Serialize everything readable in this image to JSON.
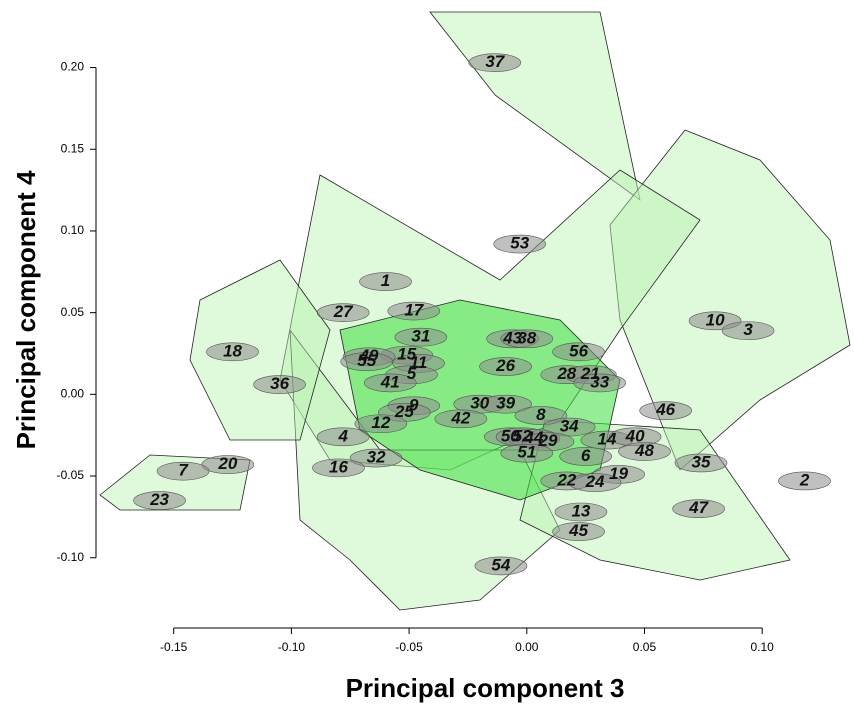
{
  "chart_data": {
    "type": "scatter",
    "xlabel": "Principal component 3",
    "ylabel": "Principal component 4",
    "xlim": [
      -0.183,
      0.139
    ],
    "ylim": [
      -0.143,
      0.234
    ],
    "xticks": [
      -0.15,
      {
        "value": -0.1,
        "label": "-0.10"
      },
      -0.05,
      {
        "value": 0,
        "label": "0.00"
      },
      0.05,
      {
        "value": 0.1,
        "label": "0.10"
      }
    ],
    "yticks": [
      {
        "value": -0.1,
        "label": "-0.10"
      },
      -0.05,
      {
        "value": 0,
        "label": "0.00"
      },
      0.05,
      {
        "value": 0.1,
        "label": "0.10"
      },
      0.15,
      {
        "value": 0.2,
        "label": "0.20"
      }
    ],
    "color": "#8c8c8c",
    "labels": [
      "37",
      "53",
      "1",
      "27",
      "17",
      "10",
      "3",
      "31",
      "43",
      "38",
      "18",
      "15",
      "49",
      "55",
      "56",
      "11",
      "26",
      "5",
      "28",
      "21",
      "33",
      "36",
      "41",
      "30",
      "39",
      "9",
      "25",
      "42",
      "46",
      "8",
      "12",
      "34",
      "4",
      "50",
      "52",
      "44",
      "29",
      "14",
      "40",
      "48",
      "51",
      "6",
      "32",
      "16",
      "20",
      "35",
      "7",
      "19",
      "22",
      "24",
      "2",
      "23",
      "47",
      "13",
      "45",
      "54"
    ],
    "x": [
      -0.0136,
      -0.003,
      -0.06,
      -0.078,
      -0.048,
      0.08,
      0.094,
      -0.045,
      -0.006,
      0.0,
      -0.125,
      -0.051,
      -0.067,
      -0.068,
      0.022,
      -0.046,
      -0.009,
      -0.049,
      0.017,
      0.027,
      0.031,
      -0.105,
      -0.058,
      -0.02,
      -0.009,
      -0.048,
      -0.052,
      -0.028,
      0.059,
      0.006,
      -0.062,
      0.018,
      -0.078,
      -0.007,
      -0.002,
      0.003,
      0.009,
      0.034,
      0.046,
      0.05,
      0.0,
      0.025,
      -0.064,
      -0.08,
      -0.127,
      0.074,
      -0.146,
      0.039,
      0.017,
      0.029,
      0.118,
      -0.156,
      0.073,
      0.023,
      0.022,
      -0.011
    ],
    "y": [
      0.203,
      0.092,
      0.069,
      0.05,
      0.051,
      0.045,
      0.039,
      0.035,
      0.034,
      0.034,
      0.026,
      0.024,
      0.023,
      0.02,
      0.026,
      0.019,
      0.017,
      0.012,
      0.012,
      0.012,
      0.007,
      0.006,
      0.007,
      -0.006,
      -0.006,
      -0.007,
      -0.011,
      -0.015,
      -0.01,
      -0.013,
      -0.018,
      -0.02,
      -0.026,
      -0.026,
      -0.026,
      -0.027,
      -0.029,
      -0.028,
      -0.026,
      -0.035,
      -0.036,
      -0.038,
      -0.039,
      -0.045,
      -0.043,
      -0.042,
      -0.047,
      -0.049,
      -0.053,
      -0.054,
      -0.053,
      -0.065,
      -0.07,
      -0.072,
      -0.084,
      -0.105
    ]
  }
}
